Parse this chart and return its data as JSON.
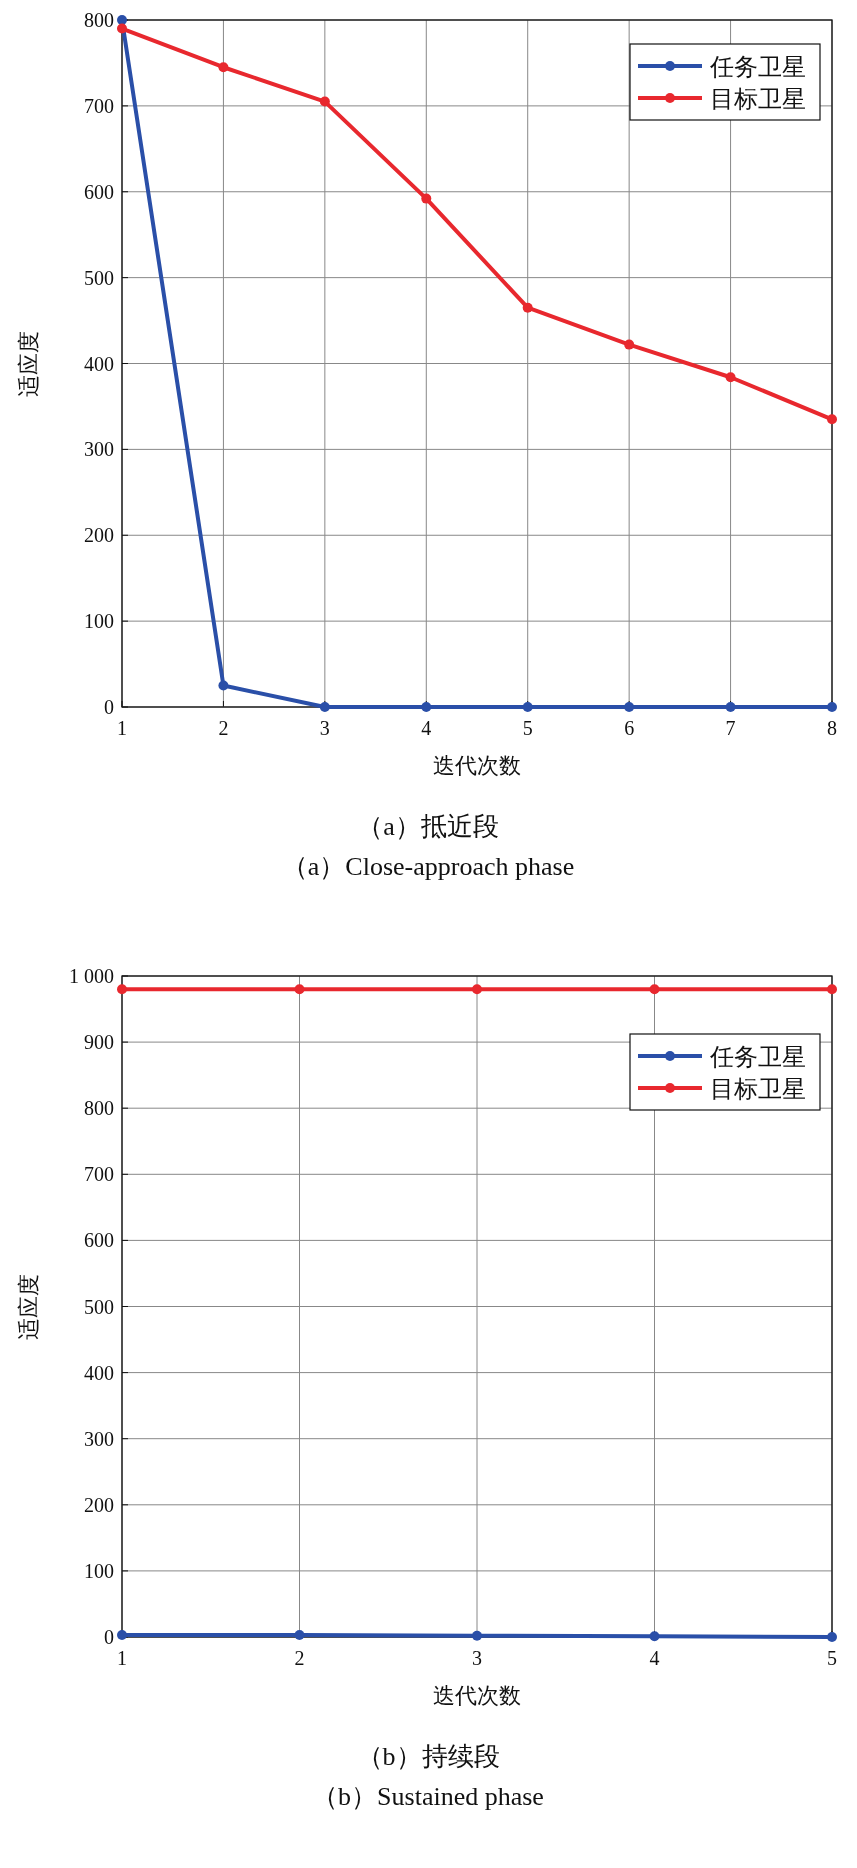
{
  "chart_data": [
    {
      "type": "line",
      "xlabel": "迭代次数",
      "ylabel": "适应度",
      "x": [
        1,
        2,
        3,
        4,
        5,
        6,
        7,
        8
      ],
      "series": [
        {
          "name": "任务卫星",
          "color": "#2a4fa8",
          "values": [
            800,
            25,
            0,
            0,
            0,
            0,
            0,
            0
          ]
        },
        {
          "name": "目标卫星",
          "color": "#e8282e",
          "values": [
            790,
            745,
            705,
            592,
            465,
            422,
            384,
            335
          ]
        }
      ],
      "xlim": [
        1,
        8
      ],
      "xticks": [
        1,
        2,
        3,
        4,
        5,
        6,
        7,
        8
      ],
      "ylim": [
        0,
        800
      ],
      "yticks": [
        0,
        100,
        200,
        300,
        400,
        500,
        600,
        700,
        800
      ],
      "grid": true,
      "legend": "top right",
      "marker": "circle",
      "line_style": "solid",
      "annotations": [
        "（a）抵近段",
        "（a）Close-approach phase"
      ]
    },
    {
      "type": "line",
      "xlabel": "迭代次数",
      "ylabel": "适应度",
      "x": [
        1,
        2,
        3,
        4,
        5
      ],
      "series": [
        {
          "name": "任务卫星",
          "color": "#2a4fa8",
          "values": [
            3,
            3,
            2,
            1,
            0
          ]
        },
        {
          "name": "目标卫星",
          "color": "#e8282e",
          "values": [
            980,
            980,
            980,
            980,
            980
          ]
        }
      ],
      "xlim": [
        1,
        5
      ],
      "xticks": [
        1,
        2,
        3,
        4,
        5
      ],
      "ylim": [
        0,
        1000
      ],
      "yticks": [
        0,
        100,
        200,
        300,
        400,
        500,
        600,
        700,
        800,
        900,
        {
          "value": 1000,
          "label": "1 000"
        }
      ],
      "grid": true,
      "legend": "top right",
      "marker": "circle",
      "line_style": "solid",
      "annotations": [
        "（b）持续段",
        "（b）Sustained phase"
      ]
    }
  ]
}
